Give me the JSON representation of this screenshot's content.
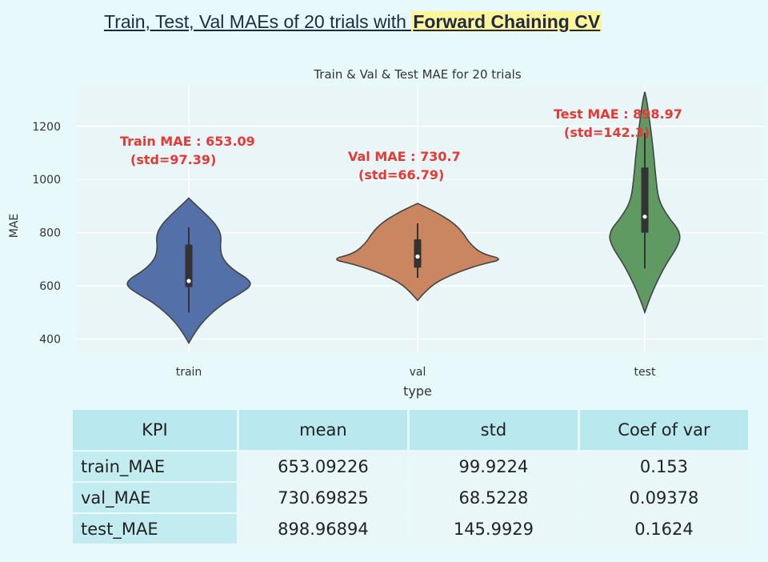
{
  "title": {
    "prefix": "Train, Test, Val MAEs of 20 trials with ",
    "highlight": "Forward Chaining CV"
  },
  "colors": {
    "background": "#e8f9fb",
    "plot_background": "#eaf5f7",
    "annotation": "#e53935",
    "train": "#5470a8",
    "val": "#c98660",
    "test": "#5f9a62"
  },
  "chart_data": {
    "type": "violin",
    "title": "Train & Val & Test MAE for 20 trials",
    "xlabel": "type",
    "ylabel": "MAE",
    "ylim": [
      350,
      1350
    ],
    "yticks": [
      400,
      600,
      800,
      1000,
      1200
    ],
    "grid": true,
    "categories": [
      "train",
      "val",
      "test"
    ],
    "series": [
      {
        "category": "train",
        "color": "#5470a8",
        "min": 500,
        "q1": 595,
        "median": 618,
        "q3": 755,
        "max": 820,
        "kde_range": [
          385,
          930
        ],
        "annotation": [
          "Train MAE : 653.09",
          "(std=97.39)"
        ]
      },
      {
        "category": "val",
        "color": "#c98660",
        "min": 630,
        "q1": 668,
        "median": 710,
        "q3": 775,
        "max": 835,
        "kde_range": [
          545,
          910
        ],
        "annotation": [
          "Val MAE : 730.7",
          "(std=66.79)"
        ]
      },
      {
        "category": "test",
        "color": "#5f9a62",
        "min": 665,
        "q1": 800,
        "median": 860,
        "q3": 1045,
        "max": 1175,
        "kde_range": [
          500,
          1330
        ],
        "annotation": [
          "Test MAE : 898.97",
          "(std=142.3)"
        ]
      }
    ]
  },
  "table": {
    "headers": [
      "KPI",
      "mean",
      "std",
      "Coef of var"
    ],
    "rows": [
      [
        "train_MAE",
        "653.09226",
        "99.9224",
        "0.153"
      ],
      [
        "val_MAE",
        "730.69825",
        "68.5228",
        "0.09378"
      ],
      [
        "test_MAE",
        "898.96894",
        "145.9929",
        "0.1624"
      ]
    ]
  }
}
